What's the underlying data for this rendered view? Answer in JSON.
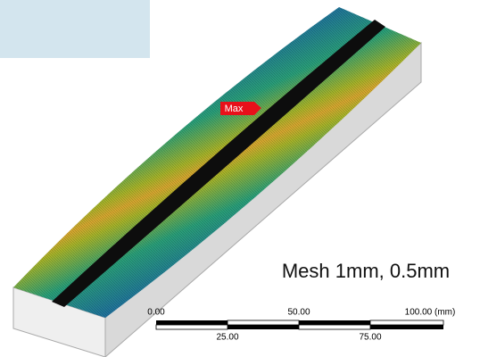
{
  "probe_label": "Max",
  "caption": "Mesh 1mm, 0.5mm",
  "scale_bar": {
    "top_labels": [
      "0.00",
      "50.00",
      "100.00 (mm)"
    ],
    "bottom_labels": [
      "25.00",
      "75.00"
    ]
  }
}
